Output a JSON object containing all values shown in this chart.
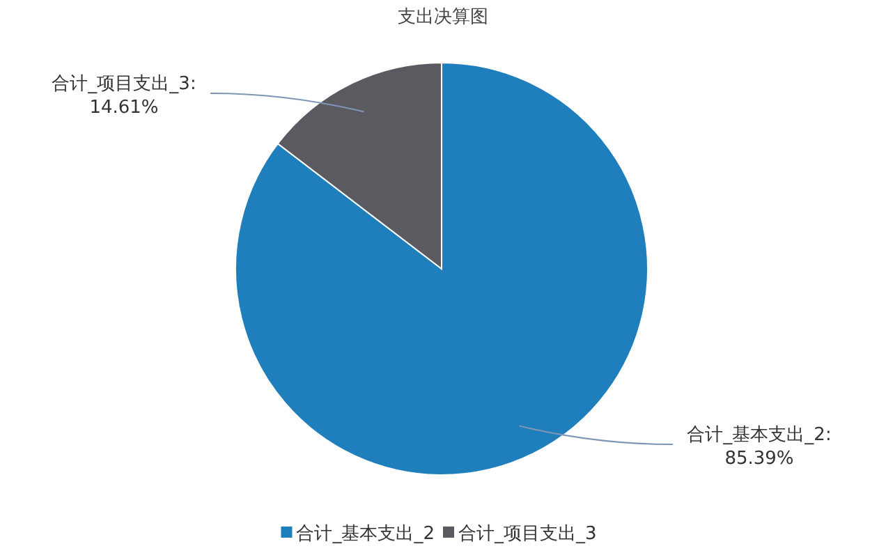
{
  "chart_data": {
    "type": "pie",
    "title": "支出决算图",
    "categories": [
      "合计_基本支出_2",
      "合计_项目支出_3"
    ],
    "values": [
      85.39,
      14.61
    ],
    "colors": [
      "#1f7fbc",
      "#5b5a61"
    ],
    "value_labels": [
      "合计_基本支出_2:\n85.39%",
      "合计_项目支出_3:\n14.61%"
    ],
    "legend": "bottom"
  }
}
